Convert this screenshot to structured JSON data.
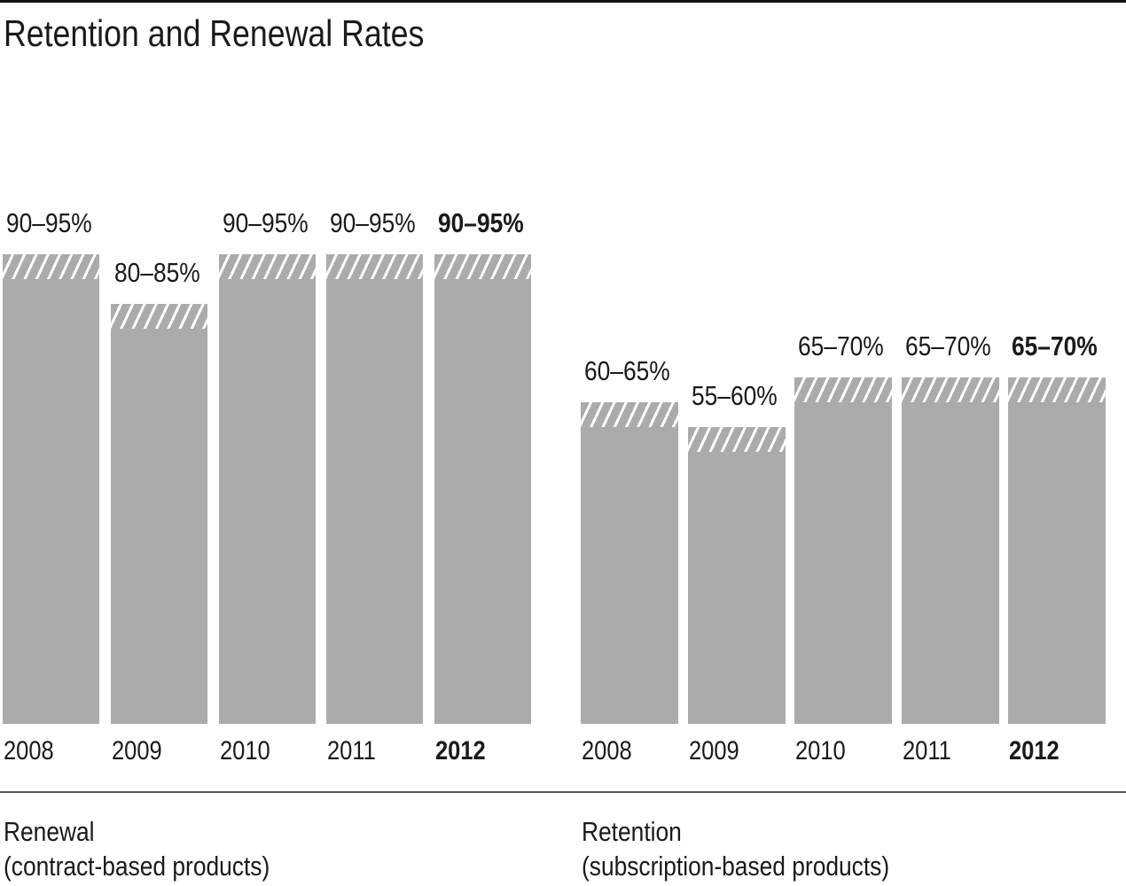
{
  "title": "Retention and Renewal Rates",
  "colors": {
    "bar_gray": "#ababab",
    "hatch_stripe": "#ffffff",
    "text": "#1a1a1a",
    "top_rule": "#111111",
    "divider": "#555555",
    "background": "#ffffff"
  },
  "chart_data": {
    "type": "bar",
    "title": "Retention and Renewal Rates",
    "unit": "%",
    "ylim": [
      0,
      100
    ],
    "grid": false,
    "legend": "none",
    "value_style": "Each bar shows a range: solid gray up to the low value, hatched diagonal-stripe segment from low to high value. Final year (2012) labels are bold.",
    "categories": [
      "2008",
      "2009",
      "2010",
      "2011",
      "2012"
    ],
    "groups": [
      {
        "name": "Renewal",
        "subtitle": "(contract-based products)",
        "bars": [
          {
            "year": "2008",
            "low": 90,
            "high": 95,
            "label": "90–95%",
            "emphasis": false
          },
          {
            "year": "2009",
            "low": 80,
            "high": 85,
            "label": "80–85%",
            "emphasis": false
          },
          {
            "year": "2010",
            "low": 90,
            "high": 95,
            "label": "90–95%",
            "emphasis": false
          },
          {
            "year": "2011",
            "low": 90,
            "high": 95,
            "label": "90–95%",
            "emphasis": false
          },
          {
            "year": "2012",
            "low": 90,
            "high": 95,
            "label": "90–95%",
            "emphasis": true
          }
        ]
      },
      {
        "name": "Retention",
        "subtitle": "(subscription-based products)",
        "bars": [
          {
            "year": "2008",
            "low": 60,
            "high": 65,
            "label": "60–65%",
            "emphasis": false
          },
          {
            "year": "2009",
            "low": 55,
            "high": 60,
            "label": "55–60%",
            "emphasis": false
          },
          {
            "year": "2010",
            "low": 65,
            "high": 70,
            "label": "65–70%",
            "emphasis": false
          },
          {
            "year": "2011",
            "low": 65,
            "high": 70,
            "label": "65–70%",
            "emphasis": false
          },
          {
            "year": "2012",
            "low": 65,
            "high": 70,
            "label": "65–70%",
            "emphasis": true
          }
        ]
      }
    ]
  }
}
